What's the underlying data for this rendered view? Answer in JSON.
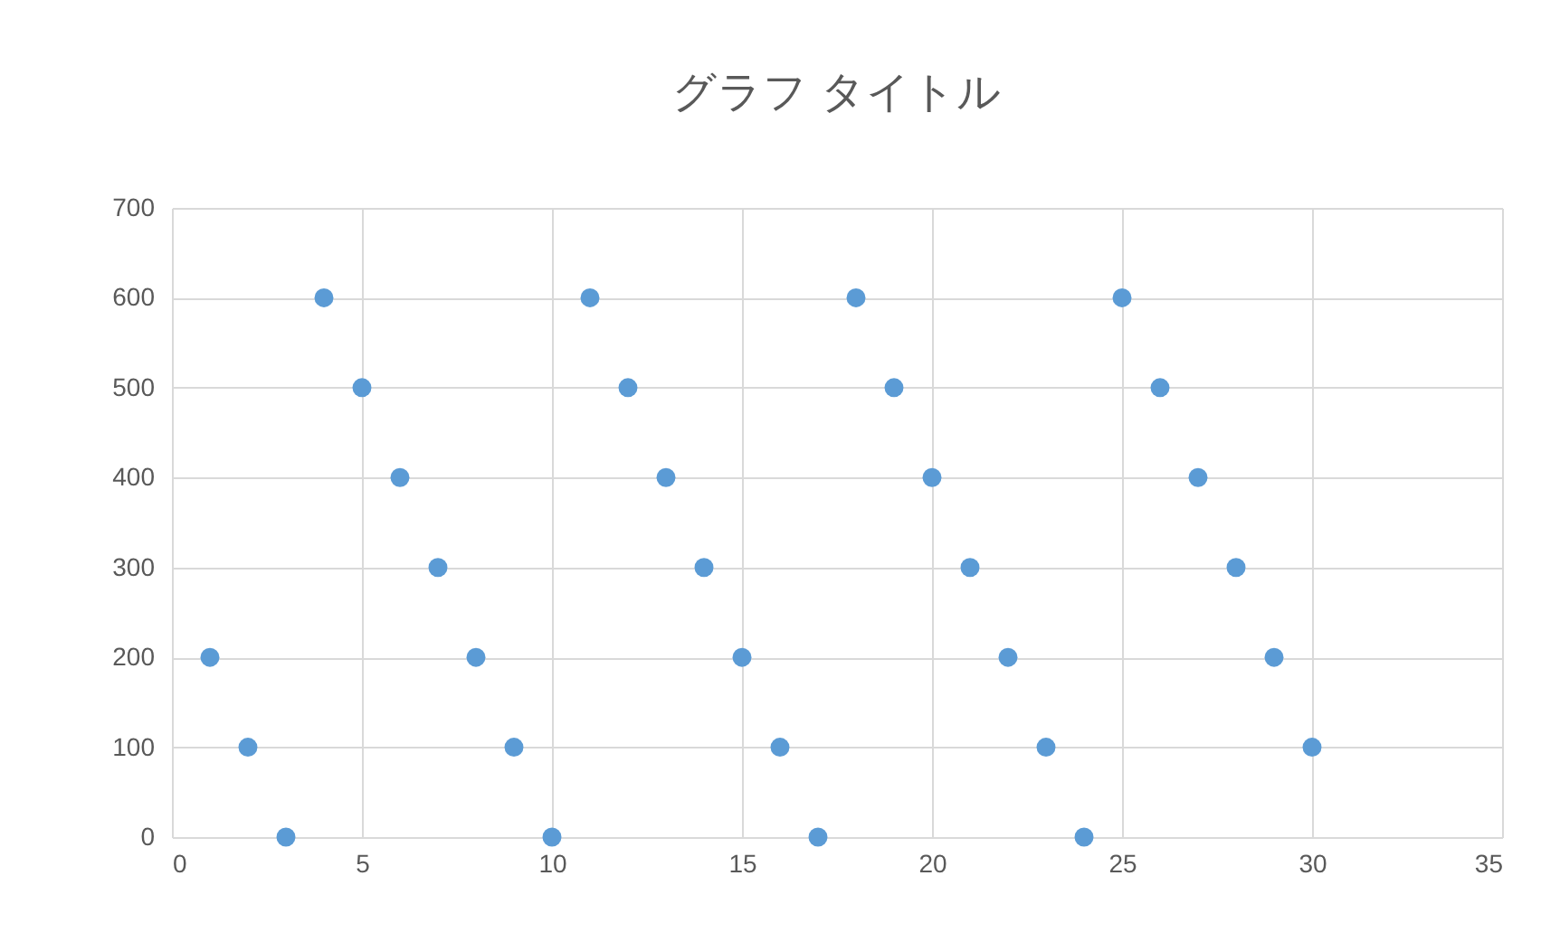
{
  "chart_data": {
    "type": "scatter",
    "title": "グラフ タイトル",
    "x": [
      1,
      2,
      3,
      4,
      5,
      6,
      7,
      8,
      9,
      10,
      11,
      12,
      13,
      14,
      15,
      16,
      17,
      18,
      19,
      20,
      21,
      22,
      23,
      24,
      25,
      26,
      27,
      28,
      29,
      30
    ],
    "series": [
      {
        "color": "#5b9bd5",
        "values": [
          200,
          100,
          0,
          600,
          500,
          400,
          300,
          200,
          100,
          0,
          600,
          500,
          400,
          300,
          200,
          100,
          0,
          600,
          500,
          400,
          300,
          200,
          100,
          0,
          600,
          500,
          400,
          300,
          200,
          100
        ]
      }
    ],
    "xlim": [
      0,
      35
    ],
    "xticks": [
      0,
      5,
      10,
      15,
      20,
      25,
      30,
      35
    ],
    "ylim": [
      0,
      700
    ],
    "yticks": [
      0,
      100,
      200,
      300,
      400,
      500,
      600,
      700
    ],
    "grid": true,
    "marker": "circle",
    "legend": false
  }
}
